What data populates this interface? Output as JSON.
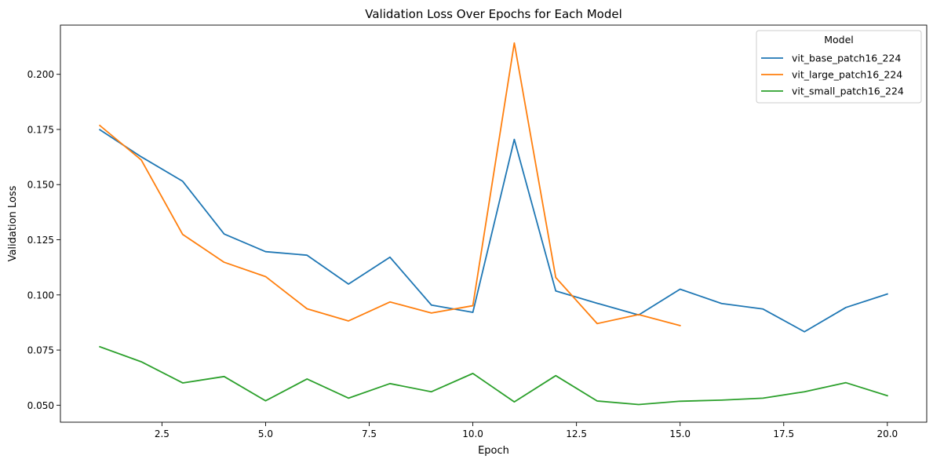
{
  "chart_data": {
    "type": "line",
    "title": "Validation Loss Over Epochs for Each Model",
    "xlabel": "Epoch",
    "ylabel": "Validation Loss",
    "xlim": [
      0.05,
      20.95
    ],
    "ylim": [
      0.0423,
      0.2223
    ],
    "xticks": [
      2.5,
      5.0,
      7.5,
      10.0,
      12.5,
      15.0,
      17.5,
      20.0
    ],
    "xtick_labels": [
      "2.5",
      "5.0",
      "7.5",
      "10.0",
      "12.5",
      "15.0",
      "17.5",
      "20.0"
    ],
    "yticks": [
      0.05,
      0.075,
      0.1,
      0.125,
      0.15,
      0.175,
      0.2
    ],
    "ytick_labels": [
      "0.050",
      "0.075",
      "0.100",
      "0.125",
      "0.150",
      "0.175",
      "0.200"
    ],
    "grid": false,
    "legend": {
      "title": "Model",
      "position": "top-right"
    },
    "series": [
      {
        "name": "vit_base_patch16_224",
        "color": "#1f77b4",
        "x": [
          1,
          2,
          3,
          4,
          5,
          6,
          7,
          8,
          9,
          10,
          11,
          12,
          13,
          14,
          15,
          16,
          17,
          18,
          19,
          20
        ],
        "values": [
          0.1749,
          0.1626,
          0.1515,
          0.1276,
          0.1196,
          0.118,
          0.1049,
          0.1171,
          0.0954,
          0.0921,
          0.1705,
          0.1018,
          0.0962,
          0.0909,
          0.1026,
          0.0961,
          0.0936,
          0.0833,
          0.0943,
          0.1004
        ]
      },
      {
        "name": "vit_large_patch16_224",
        "color": "#ff7f0e",
        "x": [
          1,
          2,
          3,
          4,
          5,
          6,
          7,
          8,
          9,
          10,
          11,
          12,
          13,
          14,
          15
        ],
        "values": [
          0.1768,
          0.1612,
          0.1274,
          0.1148,
          0.1083,
          0.0937,
          0.0882,
          0.0968,
          0.0918,
          0.0951,
          0.2142,
          0.1079,
          0.087,
          0.0911,
          0.0861
        ]
      },
      {
        "name": "vit_small_patch16_224",
        "color": "#2ca02c",
        "x": [
          1,
          2,
          3,
          4,
          5,
          6,
          7,
          8,
          9,
          10,
          11,
          12,
          13,
          14,
          15,
          16,
          17,
          18,
          19,
          20
        ],
        "values": [
          0.0765,
          0.0697,
          0.0601,
          0.063,
          0.052,
          0.0619,
          0.0532,
          0.0598,
          0.0561,
          0.0644,
          0.0515,
          0.0634,
          0.0519,
          0.0503,
          0.0518,
          0.0523,
          0.0532,
          0.0561,
          0.0602,
          0.0543
        ]
      }
    ]
  }
}
